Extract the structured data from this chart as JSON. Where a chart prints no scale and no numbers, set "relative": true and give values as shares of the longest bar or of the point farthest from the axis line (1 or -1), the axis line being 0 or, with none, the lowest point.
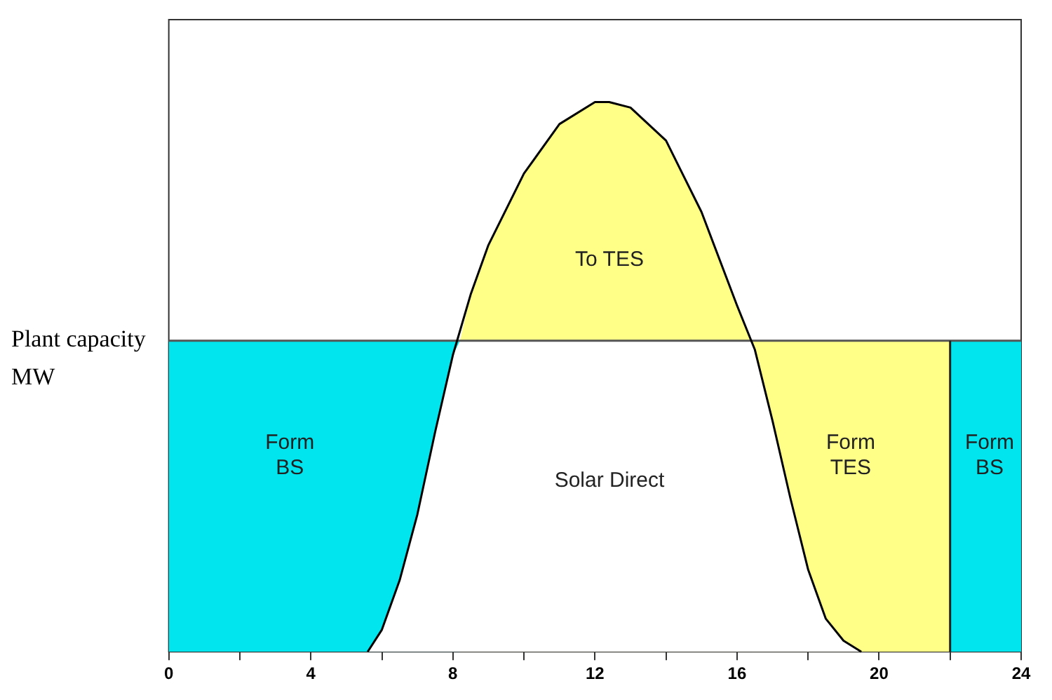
{
  "chart_data": {
    "type": "area",
    "ylabel": "Plant capacity MW",
    "relative": true,
    "legend": false,
    "grid": false,
    "xlim": [
      0,
      24
    ],
    "xticks": [
      0,
      {
        "value": 2,
        "label": null
      },
      4,
      {
        "value": 6,
        "label": null
      },
      8,
      {
        "value": 10,
        "label": null
      },
      12,
      {
        "value": 14,
        "label": null
      },
      16,
      {
        "value": 18,
        "label": null
      },
      20,
      {
        "value": 22,
        "label": null
      },
      24
    ],
    "series": [
      {
        "type": "area",
        "color": "#00e5ee",
        "x": [
          0,
          8.2
        ],
        "values": [
          0.566,
          0.566
        ]
      },
      {
        "type": "area",
        "color": "#00e5ee",
        "x": [
          22,
          24
        ],
        "values": [
          0.566,
          0.566
        ]
      },
      {
        "type": "area",
        "color": "#ffff88",
        "x": [
          16.4,
          22
        ],
        "values": [
          0.566,
          0.566
        ]
      },
      {
        "type": "area",
        "color": "#ffff88",
        "x": [
          8.2,
          8.5,
          9,
          10,
          11,
          12,
          12.4,
          13,
          14,
          15,
          16,
          16.4
        ],
        "values": [
          0.566,
          0.65,
          0.74,
          0.87,
          0.96,
          1.0,
          1.0,
          0.99,
          0.93,
          0.8,
          0.63,
          0.566
        ]
      },
      {
        "type": "area",
        "color": "#ffffff",
        "x": [
          5.6,
          6,
          6.5,
          7,
          7.5,
          8,
          8.2,
          16.4,
          16.5,
          17,
          17.5,
          18,
          18.5,
          19,
          19.5
        ],
        "values": [
          0,
          0.04,
          0.13,
          0.25,
          0.4,
          0.54,
          0.566,
          0.566,
          0.55,
          0.42,
          0.28,
          0.15,
          0.06,
          0.02,
          0
        ]
      },
      {
        "type": "line",
        "color": "#555555",
        "x": [
          0,
          24
        ],
        "values": [
          0.566,
          0.566
        ]
      },
      {
        "type": "line",
        "color": "#222222",
        "x": [
          22,
          22
        ],
        "values": [
          0,
          0.566
        ]
      },
      {
        "type": "line",
        "color": "#000000",
        "x": [
          5.6,
          6,
          6.5,
          7,
          7.5,
          8,
          8.5,
          9,
          10,
          11,
          12,
          12.4,
          13,
          14,
          15,
          16,
          16.5,
          17,
          17.5,
          18,
          18.5,
          19,
          19.5
        ],
        "values": [
          0,
          0.04,
          0.13,
          0.25,
          0.4,
          0.54,
          0.65,
          0.74,
          0.87,
          0.96,
          1.0,
          1.0,
          0.99,
          0.93,
          0.8,
          0.63,
          0.55,
          0.42,
          0.28,
          0.15,
          0.06,
          0.02,
          0
        ]
      }
    ],
    "annotations": [
      "To TES",
      "Form\nBS",
      "Solar Direct",
      "Form\nTES",
      "Form\nBS"
    ]
  }
}
